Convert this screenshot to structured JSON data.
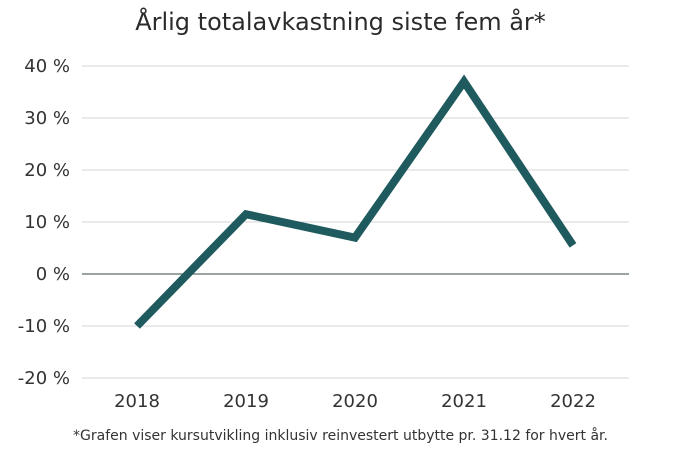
{
  "chart_data": {
    "type": "line",
    "title": "Årlig totalavkastning siste fem år*",
    "footnote": "*Grafen viser kursutvikling inklusiv reinvestert utbytte pr. 31.12 for hvert år.",
    "xlabel": "",
    "ylabel": "",
    "categories": [
      "2018",
      "2019",
      "2020",
      "2021",
      "2022"
    ],
    "values": [
      -10,
      11.5,
      7,
      37,
      5.5
    ],
    "ylim": [
      -20,
      40
    ],
    "yticks": [
      40,
      30,
      20,
      10,
      0,
      -10,
      -20
    ],
    "ytick_labels": [
      "40 %",
      "30 %",
      "20 %",
      "10 %",
      "0 %",
      "-10 %",
      "-20 %"
    ],
    "grid": true,
    "legend": "none",
    "colors": {
      "line": "#1f5a5e",
      "grid": "#d6d6d6",
      "zero_line": "#5f6d6f"
    }
  }
}
